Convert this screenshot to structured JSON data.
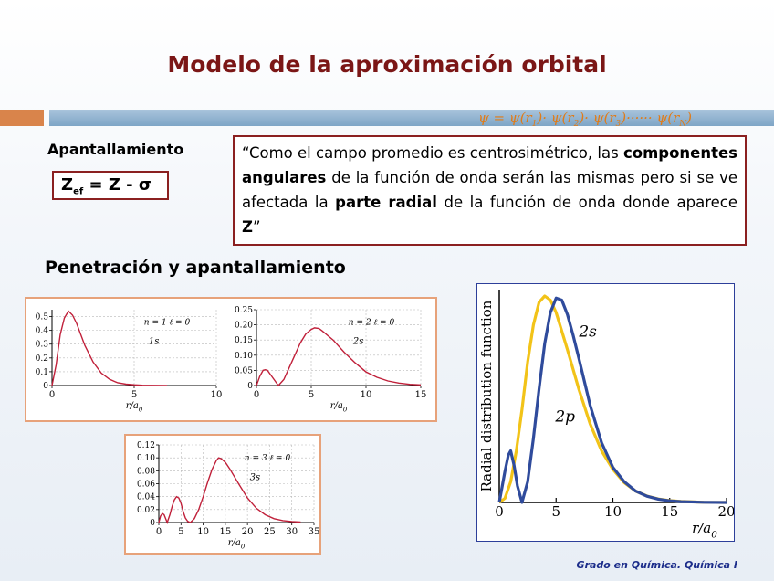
{
  "title": "Modelo de la aproximación orbital",
  "wavefunction": {
    "psi_lhs": "ψ = ",
    "f1": "ψ(r",
    "s1": "1",
    "e1": ")· ",
    "f2": "ψ(r",
    "s2": "2",
    "e2": ")· ",
    "f3": "ψ(r",
    "s3": "3",
    "e3": ")······ ",
    "f4": "ψ(r",
    "s4": "N",
    "e4": ")"
  },
  "apantallamiento": {
    "label": "Apantallamiento",
    "z_symbol": "Z",
    "z_sub": "ef",
    "z_rest": " = Z - σ"
  },
  "quote": {
    "p1": "“Como el campo promedio es centrosimétrico, las ",
    "b1": "componentes angulares",
    "p2": " de la función de onda serán las mismas pero si se ve afectada la ",
    "b2": "parte radial",
    "p3": " de la función de onda donde aparece ",
    "b3": "Z",
    "p4": "”"
  },
  "penetracion_title": "Penetración y apantallamiento",
  "footer": "Grado en Química. Química I",
  "colors": {
    "title": "#7b1616",
    "box_border": "#8b2020",
    "fig_border": "#e7a27a",
    "curve2s": "#2f4b9c",
    "curve2p": "#f2c318"
  },
  "chart_data": [
    {
      "type": "line",
      "label_n": "n = 1",
      "label_l": "ℓ = 0",
      "orbital": "1s",
      "xlabel": "r/a",
      "xlabel_sub": "0",
      "xlim": [
        0,
        10
      ],
      "ylim": [
        0,
        0.55
      ],
      "xticks": [
        "0",
        "5",
        "10"
      ],
      "yticks": [
        "0",
        "0.1",
        "0.2",
        "0.3",
        "0.4",
        "0.5"
      ],
      "x": [
        0,
        0.25,
        0.5,
        0.75,
        1,
        1.25,
        1.5,
        2,
        2.5,
        3,
        3.5,
        4,
        4.5,
        5,
        5.5,
        6,
        7
      ],
      "y": [
        0,
        0.15,
        0.37,
        0.49,
        0.54,
        0.51,
        0.45,
        0.29,
        0.17,
        0.09,
        0.045,
        0.02,
        0.01,
        0.005,
        0.002,
        0.001,
        0
      ]
    },
    {
      "type": "line",
      "label_n": "n = 2",
      "label_l": "ℓ = 0",
      "orbital": "2s",
      "xlabel": "r/a",
      "xlabel_sub": "0",
      "xlim": [
        0,
        15
      ],
      "ylim": [
        0,
        0.25
      ],
      "xticks": [
        "0",
        "5",
        "10",
        "15"
      ],
      "yticks": [
        "0",
        "0.05",
        "0.10",
        "0.15",
        "0.20",
        "0.25"
      ],
      "x": [
        0,
        0.3,
        0.6,
        0.8,
        1,
        1.3,
        1.6,
        2,
        2.5,
        3,
        3.5,
        4,
        4.5,
        5,
        5.3,
        5.7,
        6,
        7,
        8,
        9,
        10,
        11,
        12,
        13,
        14,
        15
      ],
      "y": [
        0,
        0.03,
        0.05,
        0.052,
        0.05,
        0.035,
        0.02,
        0,
        0.02,
        0.06,
        0.1,
        0.14,
        0.17,
        0.185,
        0.19,
        0.188,
        0.18,
        0.15,
        0.11,
        0.075,
        0.045,
        0.027,
        0.015,
        0.008,
        0.004,
        0.002
      ]
    },
    {
      "type": "line",
      "label_n": "n = 3",
      "label_l": "ℓ = 0",
      "orbital": "3s",
      "xlabel": "r/a",
      "xlabel_sub": "0",
      "xlim": [
        0,
        35
      ],
      "ylim": [
        0,
        0.12
      ],
      "xticks": [
        "0",
        "5",
        "10",
        "15",
        "20",
        "25",
        "30",
        "35"
      ],
      "yticks": [
        "0",
        "0.02",
        "0.04",
        "0.06",
        "0.08",
        "0.10",
        "0.12"
      ],
      "x": [
        0,
        0.4,
        0.8,
        1.2,
        1.9,
        2.5,
        3,
        3.5,
        4,
        4.5,
        5,
        5.5,
        6,
        6.5,
        7.1,
        8,
        9,
        10,
        11,
        12,
        13,
        13.5,
        14,
        15,
        16,
        18,
        20,
        22,
        24,
        26,
        28,
        30,
        32
      ],
      "y": [
        0,
        0.01,
        0.014,
        0.012,
        0,
        0.012,
        0.025,
        0.035,
        0.04,
        0.038,
        0.03,
        0.017,
        0.007,
        0.002,
        0,
        0.006,
        0.02,
        0.04,
        0.062,
        0.082,
        0.096,
        0.1,
        0.099,
        0.093,
        0.083,
        0.06,
        0.038,
        0.022,
        0.012,
        0.006,
        0.003,
        0.0015,
        0.0007
      ]
    },
    {
      "type": "line",
      "ylabel": "Radial distribution function",
      "xlabel": "r/a",
      "xlabel_sub": "0",
      "xlim": [
        0,
        20
      ],
      "ylim": [
        0,
        1
      ],
      "xticks": [
        "0",
        "5",
        "10",
        "15",
        "20"
      ],
      "series": [
        {
          "name": "2s",
          "x": [
            0,
            0.5,
            0.8,
            1,
            1.3,
            1.6,
            2,
            2.5,
            3,
            3.5,
            4,
            4.5,
            5,
            5.5,
            6,
            6.5,
            7,
            8,
            9,
            10,
            11,
            12,
            13,
            14,
            15,
            16,
            18,
            20
          ],
          "y": [
            0,
            0.15,
            0.23,
            0.25,
            0.18,
            0.08,
            0,
            0.1,
            0.31,
            0.55,
            0.77,
            0.92,
            0.99,
            0.98,
            0.91,
            0.81,
            0.7,
            0.47,
            0.29,
            0.17,
            0.1,
            0.055,
            0.03,
            0.016,
            0.008,
            0.004,
            0.001,
            0
          ]
        },
        {
          "name": "2p",
          "x": [
            0,
            0.5,
            1,
            1.5,
            2,
            2.5,
            3,
            3.5,
            4,
            4.5,
            5,
            5.5,
            6,
            7,
            8,
            9,
            10,
            11,
            12,
            13,
            14,
            15,
            16,
            18,
            20
          ],
          "y": [
            0,
            0.02,
            0.1,
            0.25,
            0.45,
            0.68,
            0.86,
            0.97,
            1.0,
            0.98,
            0.92,
            0.83,
            0.74,
            0.55,
            0.38,
            0.25,
            0.16,
            0.095,
            0.055,
            0.031,
            0.017,
            0.009,
            0.005,
            0.001,
            0
          ]
        }
      ]
    }
  ]
}
